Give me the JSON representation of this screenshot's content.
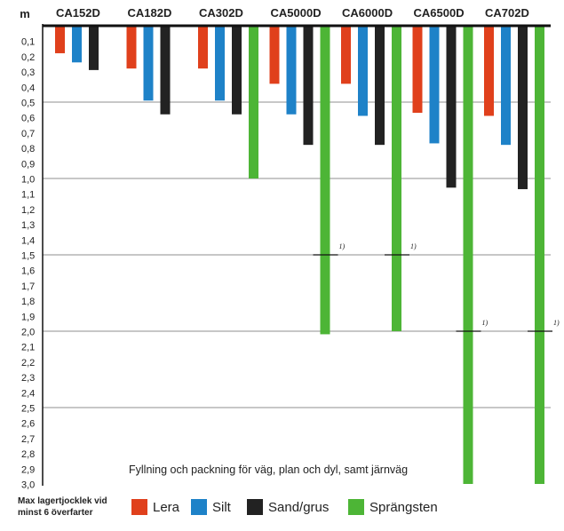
{
  "chart_data": {
    "type": "bar",
    "orientation": "vertical-downward",
    "ylabel": "m",
    "ylim": [
      0,
      3.0
    ],
    "y_tick_labels": [
      "0,1",
      "0,2",
      "0,3",
      "0,4",
      "0,5",
      "0,6",
      "0,7",
      "0,8",
      "0,9",
      "1,0",
      "1,1",
      "1,2",
      "1,3",
      "1,4",
      "1,5",
      "1,6",
      "1,7",
      "1,8",
      "1,9",
      "2,0",
      "2,1",
      "2,2",
      "2,3",
      "2,4",
      "2,5",
      "2,6",
      "2,7",
      "2,8",
      "2,9",
      "3,0"
    ],
    "gridlines": [
      0.5,
      1.0,
      1.5,
      2.0,
      2.5
    ],
    "categories": [
      "CA152D",
      "CA182D",
      "CA302D",
      "CA5000D",
      "CA6000D",
      "CA6500D",
      "CA702D"
    ],
    "series": [
      {
        "name": "Lera",
        "color": "#e0401c",
        "values": [
          0.18,
          0.28,
          0.28,
          0.38,
          0.38,
          0.57,
          0.59
        ]
      },
      {
        "name": "Silt",
        "color": "#1e82c8",
        "values": [
          0.24,
          0.49,
          0.49,
          0.58,
          0.59,
          0.77,
          0.78
        ]
      },
      {
        "name": "Sand/grus",
        "color": "#222222",
        "values": [
          0.29,
          0.58,
          0.58,
          0.78,
          0.78,
          1.06,
          1.07
        ]
      },
      {
        "name": "Sprängsten",
        "color": "#4db536",
        "values": [
          null,
          null,
          1.0,
          2.02,
          2.0,
          3.0,
          3.0
        ]
      }
    ],
    "footnote_markers": [
      {
        "category": "CA5000D",
        "value": 1.5,
        "label": "1)"
      },
      {
        "category": "CA6000D",
        "value": 1.5,
        "label": "1)"
      },
      {
        "category": "CA6500D",
        "value": 2.0,
        "label": "1)"
      },
      {
        "category": "CA702D",
        "value": 2.0,
        "label": "1)"
      }
    ],
    "annotation": "Fyllning och packning för väg, plan och dyl, samt järnväg",
    "legend_caption": "Max lagertjocklek vid minst 6 överfarter",
    "legend_position": "bottom"
  }
}
